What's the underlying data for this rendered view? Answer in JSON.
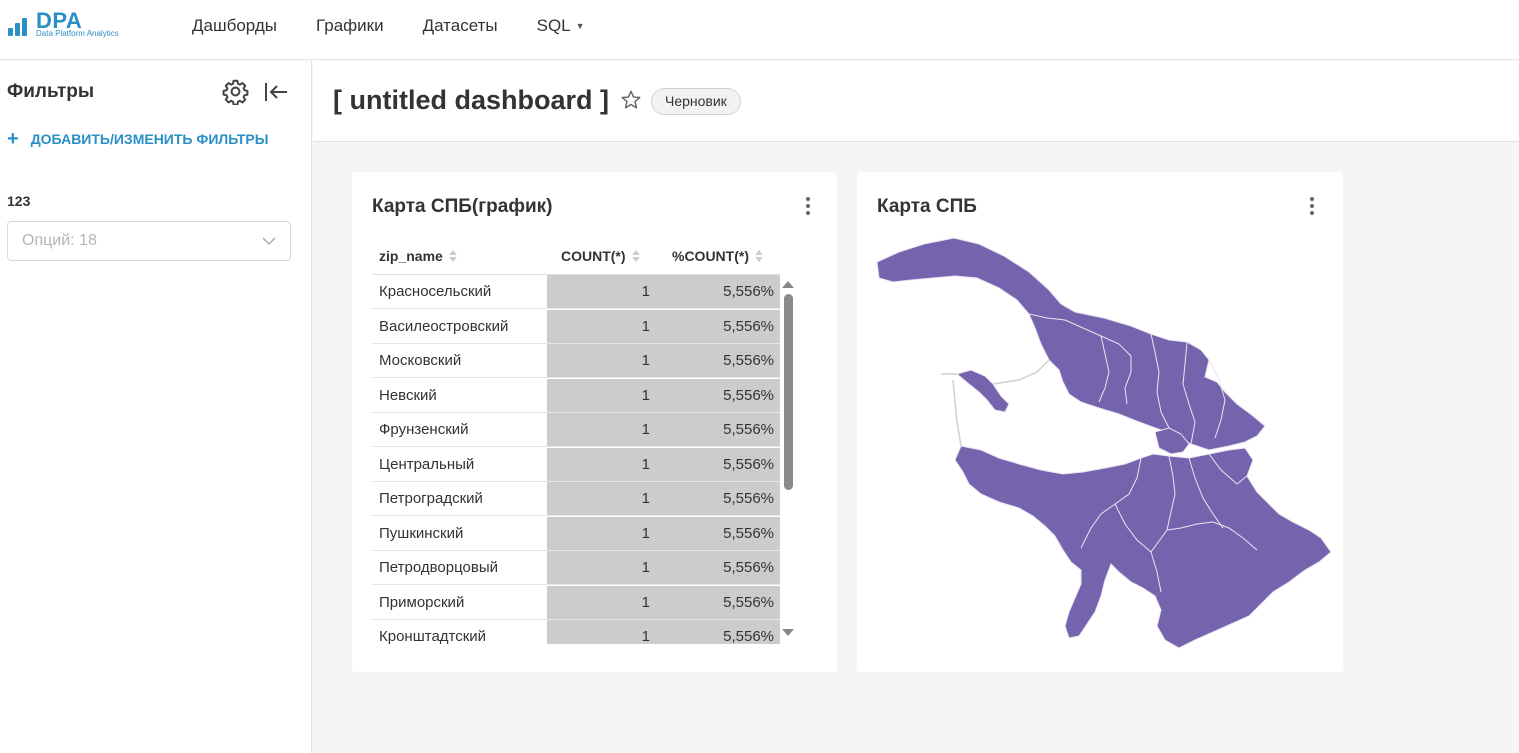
{
  "logo": {
    "word": "DPA",
    "sub": "Data Platform Analytics",
    "color": "#2a8fc7"
  },
  "nav": {
    "items": [
      {
        "label": "Дашборды"
      },
      {
        "label": "Графики"
      },
      {
        "label": "Датасеты"
      },
      {
        "label": "SQL",
        "dropdown": true
      }
    ]
  },
  "sidebar": {
    "title": "Фильтры",
    "add_filters_label": "ДОБАВИТЬ/ИЗМЕНИТЬ ФИЛЬТРЫ",
    "filter": {
      "label": "123",
      "placeholder": "Опций: 18"
    }
  },
  "dashboard": {
    "title": "[ untitled dashboard ]",
    "status_badge": "Черновик"
  },
  "table_chart": {
    "title": "Карта СПБ(график)",
    "columns": [
      "zip_name",
      "COUNT(*)",
      "%COUNT(*)"
    ],
    "rows": [
      [
        "Красносельский",
        "1",
        "5,556%"
      ],
      [
        "Василеостровский",
        "1",
        "5,556%"
      ],
      [
        "Московский",
        "1",
        "5,556%"
      ],
      [
        "Невский",
        "1",
        "5,556%"
      ],
      [
        "Фрунзенский",
        "1",
        "5,556%"
      ],
      [
        "Центральный",
        "1",
        "5,556%"
      ],
      [
        "Петроградский",
        "1",
        "5,556%"
      ],
      [
        "Пушкинский",
        "1",
        "5,556%"
      ],
      [
        "Петродворцовый",
        "1",
        "5,556%"
      ],
      [
        "Приморский",
        "1",
        "5,556%"
      ],
      [
        "Кронштадтский",
        "1",
        "5,556%"
      ]
    ]
  },
  "map_chart": {
    "title": "Карта СПБ",
    "fill_color": "#7563ae",
    "border_color": "#e8e6f2"
  }
}
